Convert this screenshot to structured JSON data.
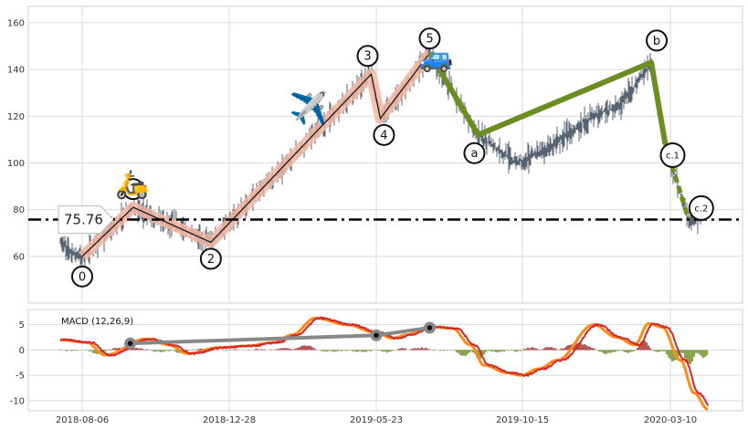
{
  "chart_data": [
    {
      "type": "line",
      "panel": "price",
      "x_tick_labels": [
        "2018-08-06",
        "2018-12-28",
        "2019-05-23",
        "2019-10-15",
        "2020-03-10"
      ],
      "y_ticks": [
        60,
        80,
        100,
        120,
        140,
        160
      ],
      "ylim": [
        40,
        167
      ],
      "grid": true,
      "support_level": {
        "value": 75.76,
        "label": "75.76",
        "style": "dash-dot"
      },
      "elliott_waves": [
        {
          "label": "0",
          "date": "2018-08-06",
          "price": 60
        },
        {
          "label": "1",
          "date": "2018-09-25",
          "price": 81
        },
        {
          "label": "2",
          "date": "2018-12-10",
          "price": 66
        },
        {
          "label": "3",
          "date": "2019-05-18",
          "price": 138
        },
        {
          "label": "4",
          "date": "2019-05-27",
          "price": 119
        },
        {
          "label": "5",
          "date": "2019-07-15",
          "price": 147
        },
        {
          "label": "a",
          "date": "2019-09-01",
          "price": 112
        },
        {
          "label": "b",
          "date": "2020-02-20",
          "price": 143
        },
        {
          "label": "c.1",
          "date": "2020-03-05",
          "price": 108
        },
        {
          "label": "c.2",
          "date": "2020-03-28",
          "price": 76
        }
      ],
      "impulse_color": "#f4b9a4",
      "correction_color": "#6b8e23",
      "price_color": "#2f3e4f",
      "emojis": [
        {
          "glyph": "🛵",
          "name": "scooter"
        },
        {
          "glyph": "✈️",
          "name": "airplane"
        },
        {
          "glyph": "🚙",
          "name": "car"
        }
      ]
    },
    {
      "type": "line",
      "panel": "macd",
      "title": "MACD (12,26,9)",
      "y_ticks": [
        -10,
        -5,
        0,
        5
      ],
      "ylim": [
        -12,
        8
      ],
      "grid": true,
      "series": [
        {
          "color": "#ff8c1a",
          "width": 3
        },
        {
          "color": "#d62728",
          "width": 2
        }
      ],
      "histogram_colors": {
        "positive": "#a52a2a",
        "negative": "#6b8e23"
      },
      "divergence_line": {
        "color": "#888888",
        "points": [
          {
            "date": "2018-09-22",
            "macd": 1.3
          },
          {
            "date": "2019-05-23",
            "macd": 2.9
          },
          {
            "date": "2019-07-15",
            "macd": 4.4
          }
        ]
      }
    }
  ]
}
